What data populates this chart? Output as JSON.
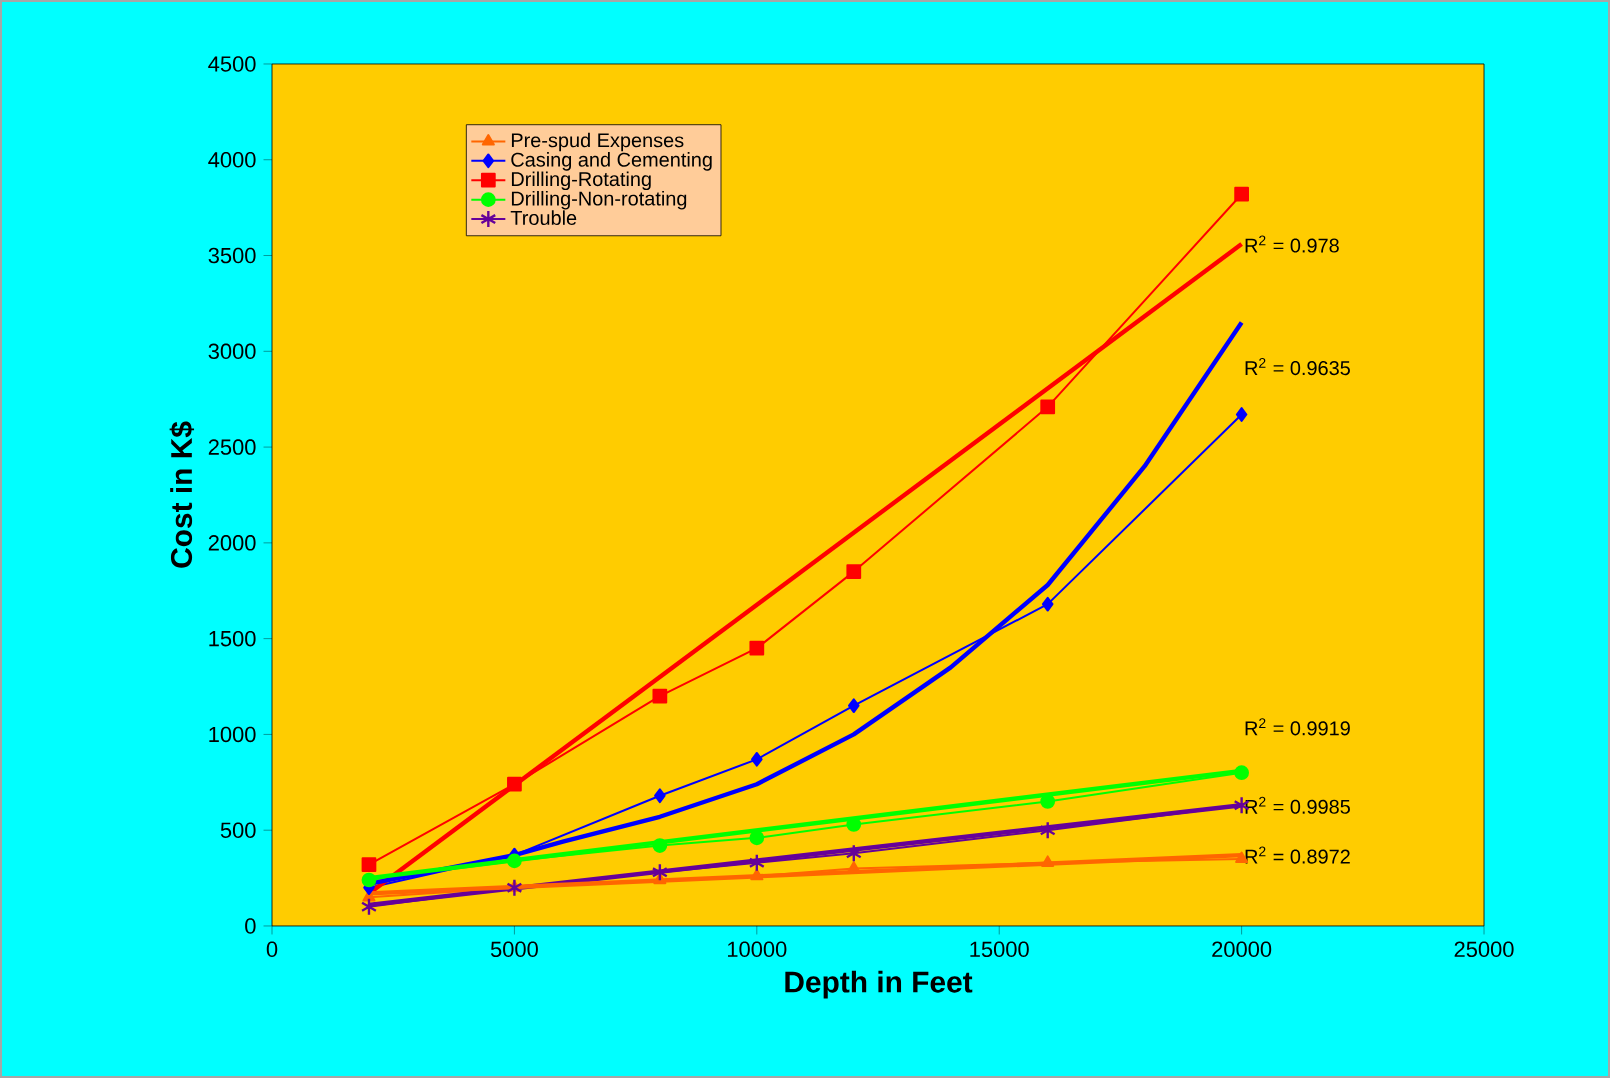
{
  "chart_data": {
    "type": "line",
    "xlabel": "Depth in Feet",
    "ylabel": "Cost in K$",
    "x": [
      2000,
      5000,
      8000,
      10000,
      12000,
      16000,
      20000
    ],
    "series": [
      {
        "name": "Pre-spud Expenses",
        "color": "#ff6600",
        "marker": "triangle",
        "values": [
          150,
          200,
          240,
          260,
          300,
          330,
          350
        ]
      },
      {
        "name": "Casing and Cementing",
        "color": "#0000ff",
        "marker": "diamond",
        "values": [
          200,
          370,
          680,
          870,
          1150,
          1680,
          2670
        ]
      },
      {
        "name": "Drilling-Rotating",
        "color": "#ff0000",
        "marker": "square",
        "values": [
          320,
          740,
          1200,
          1450,
          1850,
          2710,
          3820
        ]
      },
      {
        "name": "Drilling-Non-rotating",
        "color": "#00ff00",
        "marker": "circle",
        "values": [
          240,
          340,
          420,
          460,
          530,
          650,
          800
        ]
      },
      {
        "name": "Trouble",
        "color": "#660099",
        "marker": "cross",
        "values": [
          100,
          200,
          280,
          330,
          380,
          500,
          630
        ]
      },
      {
        "type": "line",
        "color": "#ff0000",
        "marker": "none",
        "x": [
          2000,
          20000
        ],
        "values": [
          170,
          3560
        ]
      },
      {
        "type": "line",
        "color": "#0000ff",
        "marker": "none",
        "x": [
          2000,
          4000,
          5000,
          6000,
          8000,
          10000,
          12000,
          14000,
          16000,
          18000,
          20000
        ],
        "values": [
          220,
          320,
          370,
          440,
          570,
          740,
          1000,
          1350,
          1780,
          2400,
          3150
        ]
      },
      {
        "type": "line",
        "color": "#00ff00",
        "marker": "none",
        "x": [
          2000,
          20000
        ],
        "values": [
          250,
          810
        ]
      },
      {
        "type": "line",
        "color": "#660099",
        "marker": "none",
        "x": [
          2000,
          20000
        ],
        "values": [
          110,
          630
        ]
      },
      {
        "type": "line",
        "color": "#ff6600",
        "marker": "none",
        "x": [
          2000,
          20000
        ],
        "values": [
          170,
          370
        ]
      }
    ],
    "annotations": [
      "R$^{2}$ = 0.978",
      "R$^{2}$ = 0.9635",
      "R$^{2}$ = 0.9919",
      "R$^{2}$ = 0.9985",
      "R$^{2}$ = 0.8972"
    ],
    "xlim": [
      0,
      25000
    ],
    "ylim": [
      0,
      4500
    ],
    "xticks": [
      0,
      5000,
      10000,
      15000,
      20000,
      25000
    ],
    "yticks": [
      0,
      500,
      1000,
      1500,
      2000,
      2500,
      3000,
      3500,
      4000,
      4500
    ],
    "legend": "top left",
    "grid": false
  }
}
